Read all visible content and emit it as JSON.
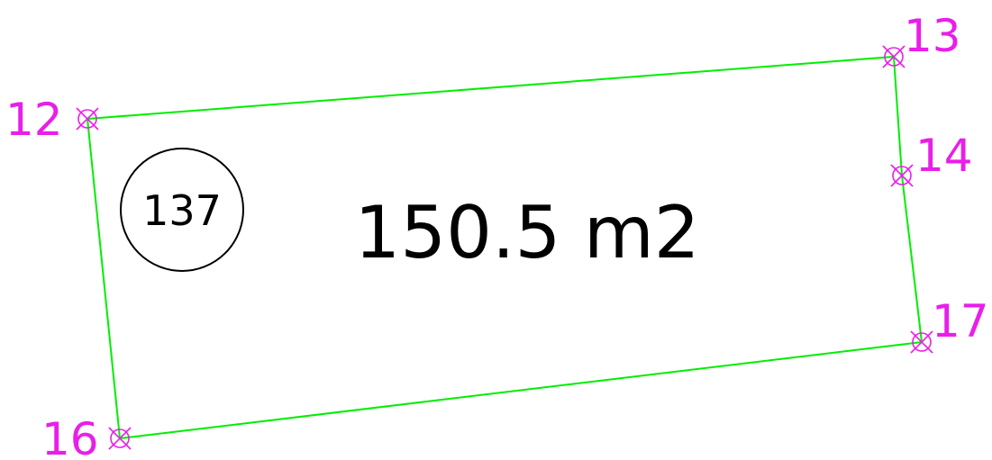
{
  "parcel": {
    "number": "137",
    "area": "150.5 m2"
  },
  "points": [
    {
      "id": "p12",
      "label": "12"
    },
    {
      "id": "p13",
      "label": "13"
    },
    {
      "id": "p14",
      "label": "14"
    },
    {
      "id": "p17",
      "label": "17"
    },
    {
      "id": "p16",
      "label": "16"
    }
  ],
  "colors": {
    "boundary": "#00ee00",
    "point_marker": "#e91ee9",
    "text": "#000000"
  }
}
